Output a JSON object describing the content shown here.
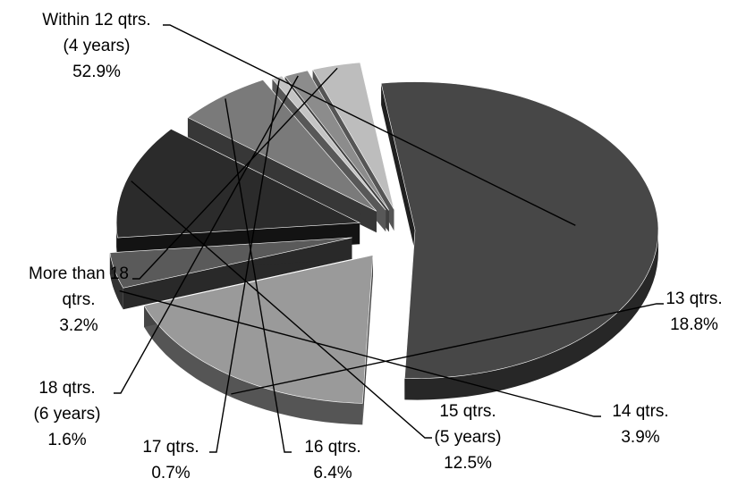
{
  "chart_data": {
    "type": "pie",
    "style": "3d-exploded",
    "title": "",
    "legend": "none",
    "slices": [
      {
        "lines": [
          "Within 12 qtrs.",
          "(4 years)"
        ],
        "value": 52.9,
        "value_label": "52.9%",
        "color": "#474747"
      },
      {
        "lines": [
          "13 qtrs."
        ],
        "value": 18.8,
        "value_label": "18.8%",
        "color": "#9a9a9a"
      },
      {
        "lines": [
          "14 qtrs."
        ],
        "value": 3.9,
        "value_label": "3.9%",
        "color": "#5a5a5a"
      },
      {
        "lines": [
          "15 qtrs.",
          "(5 years)"
        ],
        "value": 12.5,
        "value_label": "12.5%",
        "color": "#2b2b2b"
      },
      {
        "lines": [
          "16 qtrs."
        ],
        "value": 6.4,
        "value_label": "6.4%",
        "color": "#7a7a7a"
      },
      {
        "lines": [
          "17 qtrs."
        ],
        "value": 0.7,
        "value_label": "0.7%",
        "color": "#c4c4c4"
      },
      {
        "lines": [
          "18 qtrs.",
          "(6 years)"
        ],
        "value": 1.6,
        "value_label": "1.6%",
        "color": "#8c8c8c"
      },
      {
        "lines": [
          "More than 18",
          "qtrs."
        ],
        "value": 3.2,
        "value_label": "3.2%",
        "color": "#bdbdbd"
      }
    ]
  }
}
